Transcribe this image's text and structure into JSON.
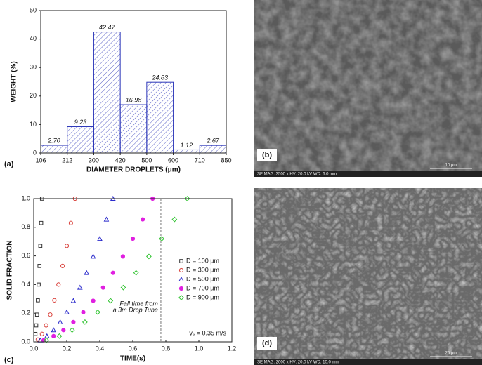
{
  "chart_data": [
    {
      "type": "histogram",
      "panel_label": "(a)",
      "x_label": "DIAMETER DROPLETS (μm)",
      "y_label": "WEIGHT (%)",
      "bins": [
        106,
        212,
        300,
        420,
        500,
        600,
        710,
        850
      ],
      "values": [
        2.7,
        9.23,
        42.47,
        16.98,
        24.83,
        1.12,
        2.67
      ],
      "value_labels": [
        "2.70",
        "9.23",
        "42.47",
        "16.98",
        "24.83",
        "1.12",
        "2.67"
      ],
      "color": "#2b35b8",
      "ylim": [
        0,
        50
      ],
      "yticks": [
        0,
        10,
        20,
        30,
        40,
        50
      ]
    },
    {
      "type": "scatter",
      "panel_label": "(c)",
      "x_label": "TIME(s)",
      "y_label": "SOLID FRACTION",
      "xlim": [
        0,
        1.2
      ],
      "ylim": [
        0,
        1
      ],
      "xticks": [
        {
          "value": 0,
          "label": "0.0"
        },
        0.2,
        0.4,
        0.6,
        0.8,
        {
          "value": 1,
          "label": "1.0"
        },
        0.2,
        1.2
      ],
      "yticks": [
        {
          "value": 0,
          "label": "0.0"
        },
        0.2,
        0.4,
        0.6,
        0.8,
        {
          "value": 1,
          "label": "1.0"
        }
      ],
      "vline": 0.77,
      "annotation": [
        "Fall time from",
        "a 3m Drop Tube"
      ],
      "velocity_note": "vₛ = 0.35 m/s",
      "legend": "right",
      "series": [
        {
          "name": "D = 100 μm",
          "color": "#333333",
          "marker": "square",
          "x": [
            0.01,
            0.015,
            0.02,
            0.025,
            0.03,
            0.035,
            0.04,
            0.045,
            0.05
          ],
          "values": [
            0.055,
            0.115,
            0.19,
            0.29,
            0.4,
            0.53,
            0.67,
            0.83,
            1.0
          ]
        },
        {
          "name": "D = 300 μm",
          "color": "#d9403a",
          "marker": "circle",
          "x": [
            0.025,
            0.05,
            0.075,
            0.1,
            0.125,
            0.15,
            0.175,
            0.2,
            0.225,
            0.25
          ],
          "values": [
            0.016,
            0.055,
            0.115,
            0.19,
            0.29,
            0.4,
            0.53,
            0.67,
            0.83,
            1.0
          ]
        },
        {
          "name": "D = 500 μm",
          "color": "#2b2bcc",
          "marker": "triangle",
          "x": [
            0.04,
            0.08,
            0.12,
            0.16,
            0.2,
            0.24,
            0.28,
            0.32,
            0.36,
            0.4,
            0.44,
            0.48
          ],
          "values": [
            0.011,
            0.04,
            0.082,
            0.138,
            0.207,
            0.287,
            0.379,
            0.482,
            0.596,
            0.72,
            0.855,
            1.0
          ]
        },
        {
          "name": "D = 700 μm",
          "color": "#e020e0",
          "marker": "dot",
          "x": [
            0.06,
            0.12,
            0.18,
            0.24,
            0.3,
            0.36,
            0.42,
            0.48,
            0.54,
            0.6,
            0.66,
            0.72
          ],
          "values": [
            0.011,
            0.04,
            0.082,
            0.138,
            0.207,
            0.287,
            0.379,
            0.482,
            0.596,
            0.72,
            0.855,
            1.0
          ]
        },
        {
          "name": "D = 900 μm",
          "color": "#33c433",
          "marker": "diamond",
          "x": [
            0.0775,
            0.155,
            0.2325,
            0.31,
            0.3875,
            0.465,
            0.5425,
            0.62,
            0.6975,
            0.775,
            0.8525,
            0.93
          ],
          "values": [
            0.011,
            0.04,
            0.082,
            0.138,
            0.207,
            0.287,
            0.379,
            0.482,
            0.596,
            0.72,
            0.855,
            1.0
          ]
        }
      ]
    }
  ],
  "images": [
    {
      "label": "(b)",
      "info": "SE  MAG: 3500 x  HV: 20.0 kV  WD: 6.0 mm",
      "scale_bar": "10 μm"
    },
    {
      "label": "(d)",
      "info": "SE  MAG: 2000 x  HV: 20.0 kV  WD: 10.0 mm",
      "scale_bar": "20 μm"
    }
  ]
}
